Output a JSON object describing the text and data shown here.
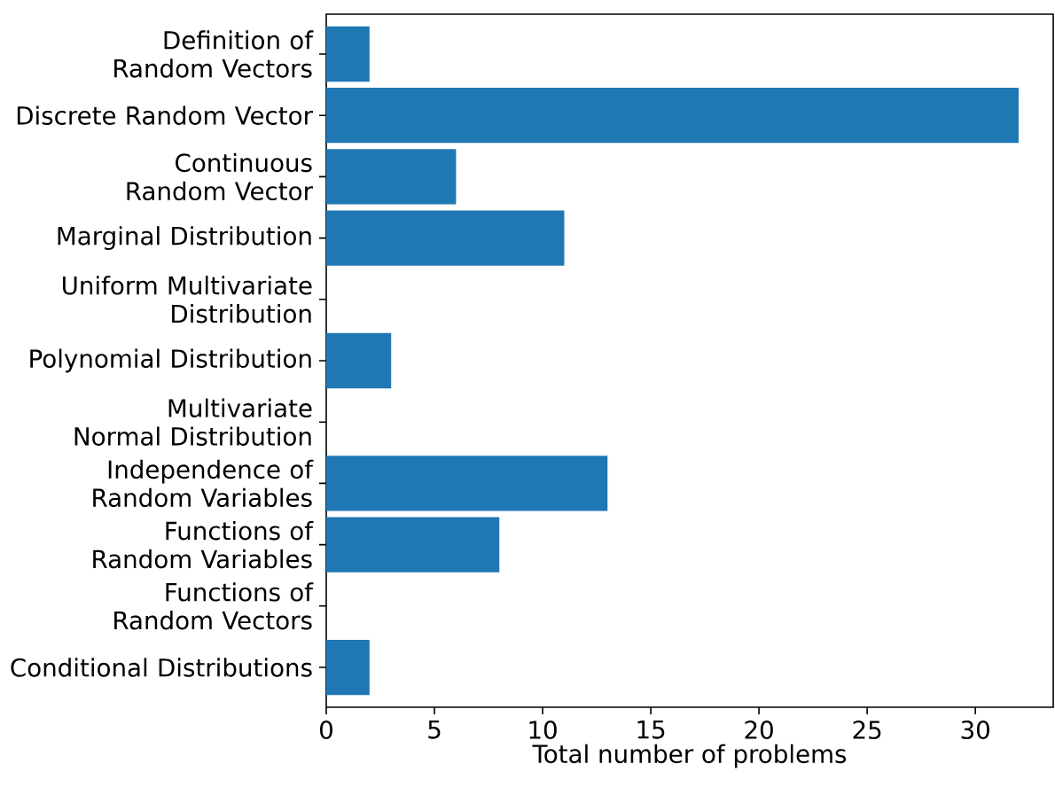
{
  "chart_data": {
    "type": "bar",
    "orientation": "horizontal",
    "categories": [
      "Definition of Random Vectors",
      "Discrete Random Vector",
      "Continuous Random Vector",
      "Marginal Distribution",
      "Uniform Multivariate Distribution",
      "Polynomial Distribution",
      "Multivariate Normal Distribution",
      "Independence of Random Variables",
      "Functions of Random Variables",
      "Functions of Random Vectors",
      "Conditional Distributions"
    ],
    "values": [
      2,
      32,
      6,
      11,
      0,
      3,
      0,
      13,
      8,
      0,
      2
    ],
    "color": "#1f77b4",
    "xlabel": "Total number of problems",
    "xlim": [
      0,
      33.6
    ],
    "xticks": [
      0,
      5,
      10,
      15,
      20,
      25,
      30
    ],
    "grid": false
  }
}
